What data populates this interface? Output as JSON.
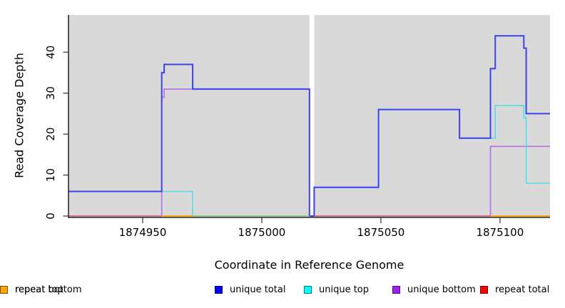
{
  "figure": {
    "xlabel": "Coordinate in Reference Genome",
    "ylabel": "Read Coverage Depth"
  },
  "chart_data": {
    "type": "line",
    "subtype": "step",
    "title": "",
    "xlabel": "Coordinate in Reference Genome",
    "ylabel": "Read Coverage Depth",
    "xlim": [
      1874919,
      1875121
    ],
    "ylim": [
      0,
      49
    ],
    "grid": false,
    "plot_bg_color": "#d9d9d9",
    "axis_color": "#000000",
    "legend_position": "bottom",
    "x_ticks": [
      {
        "pos": 1874950,
        "label": "1874950"
      },
      {
        "pos": 1875000,
        "label": "1875000"
      },
      {
        "pos": 1875050,
        "label": "1875050"
      },
      {
        "pos": 1875100,
        "label": "1875100"
      }
    ],
    "y_ticks": [
      {
        "pos": 0,
        "label": "0"
      },
      {
        "pos": 10,
        "label": "10"
      },
      {
        "pos": 20,
        "label": "20"
      },
      {
        "pos": 30,
        "label": "30"
      },
      {
        "pos": 40,
        "label": "40"
      }
    ],
    "no_data_gap": {
      "x1": 1875020,
      "x2": 1875022,
      "color": "#ffffff"
    },
    "series": [
      {
        "name": "repeat total",
        "color": "#ff0000",
        "line_color": "#e05570",
        "points": [
          [
            1874919,
            0
          ],
          [
            1875121,
            0
          ]
        ]
      },
      {
        "name": "repeat top",
        "color": "#ffff00",
        "line_color": "#f0e050",
        "points": [
          [
            1874919,
            0
          ],
          [
            1875121,
            0
          ]
        ]
      },
      {
        "name": "repeat bottom",
        "color": "#ffa500",
        "line_color": "#ffa516",
        "points": [
          [
            1874919,
            0
          ],
          [
            1875121,
            0
          ]
        ]
      },
      {
        "name": "unique bottom",
        "color": "#a020f0",
        "line_color": "#b76ee6",
        "points": [
          [
            1874919,
            0
          ],
          [
            1874958,
            29
          ],
          [
            1874959,
            31
          ],
          [
            1875020,
            0
          ],
          [
            1875096,
            17
          ],
          [
            1875121,
            17
          ]
        ]
      },
      {
        "name": "unique top",
        "color": "#00ffff",
        "line_color": "#4fdfe8",
        "points": [
          [
            1874919,
            6
          ],
          [
            1874971,
            0
          ],
          [
            1875022,
            7
          ],
          [
            1875049,
            26
          ],
          [
            1875083,
            19
          ],
          [
            1875098,
            27
          ],
          [
            1875110,
            24
          ],
          [
            1875111,
            8
          ],
          [
            1875121,
            8
          ]
        ]
      },
      {
        "name": "unique total",
        "color": "#0000ff",
        "line_color": "#3b43ef",
        "points": [
          [
            1874919,
            6
          ],
          [
            1874958,
            35
          ],
          [
            1874959,
            37
          ],
          [
            1874971,
            31
          ],
          [
            1875020,
            0
          ],
          [
            1875022,
            7
          ],
          [
            1875049,
            26
          ],
          [
            1875083,
            19
          ],
          [
            1875096,
            36
          ],
          [
            1875098,
            44
          ],
          [
            1875110,
            41
          ],
          [
            1875111,
            25
          ],
          [
            1875121,
            25
          ]
        ]
      }
    ],
    "baseline_blend_segments": [
      {
        "x1": 1874919,
        "x2": 1874958,
        "color": "#c96a8c"
      },
      {
        "x1": 1874958,
        "x2": 1874971,
        "color": "#ffa500"
      },
      {
        "x1": 1874971,
        "x2": 1875020,
        "color": "#8fca8f"
      },
      {
        "x1": 1875022,
        "x2": 1875096,
        "color": "#c96a8c"
      },
      {
        "x1": 1875096,
        "x2": 1875121,
        "color": "#ffa500"
      }
    ]
  },
  "legend": {
    "items": [
      {
        "label": "unique total",
        "color": "#0000ff"
      },
      {
        "label": "unique top",
        "color": "#00ffff"
      },
      {
        "label": "unique bottom",
        "color": "#a020f0"
      },
      {
        "label": "repeat total",
        "color": "#ff0000"
      },
      {
        "label": "repeat top",
        "color": "#ffff00"
      },
      {
        "label": "repeat bottom",
        "color": "#ffa500"
      }
    ]
  }
}
